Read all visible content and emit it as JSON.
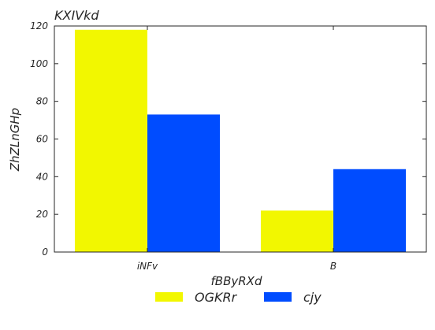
{
  "chart_data": {
    "type": "bar",
    "title": "KXIVkd",
    "xlabel": "fBByRXd",
    "ylabel": "ZhZLnGHp",
    "categories": [
      "iNFv",
      "B"
    ],
    "series": [
      {
        "name": "OGKRr",
        "color": "#f2f700",
        "values": [
          118,
          22
        ]
      },
      {
        "name": "cjy",
        "color": "#004cff",
        "values": [
          73,
          44
        ]
      }
    ],
    "ylim": [
      0,
      120
    ],
    "yticks": [
      0,
      20,
      40,
      60,
      80,
      100,
      120
    ],
    "grid": false,
    "legend_position": "bottom-center"
  }
}
